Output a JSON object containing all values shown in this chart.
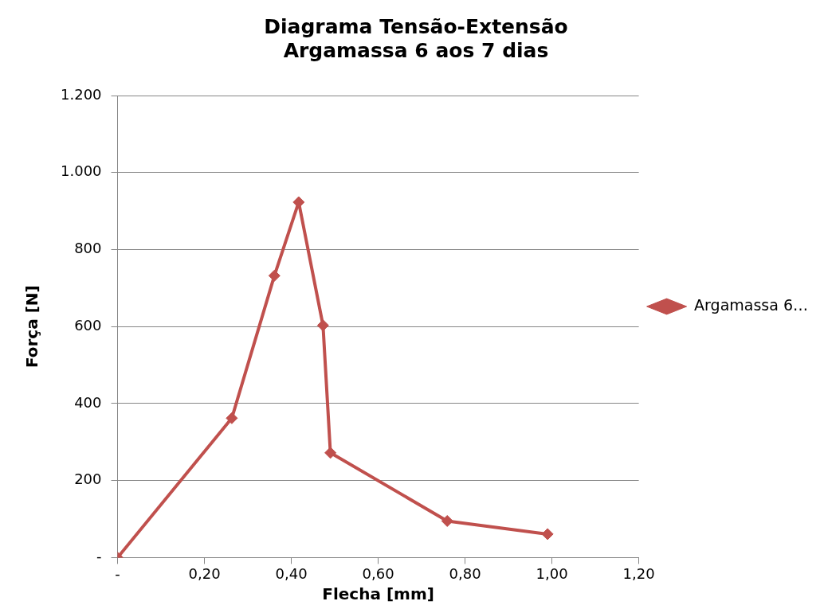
{
  "chart_data": {
    "type": "line",
    "title": [
      "Diagrama Tensão-Extensão",
      "Argamassa 6 aos 7 dias"
    ],
    "xlabel": "Flecha [mm]",
    "ylabel": "Força [N]",
    "series": [
      {
        "name": "Argamassa 6…",
        "color": "#c0504d",
        "x": [
          0.0,
          0.263,
          0.361,
          0.417,
          0.473,
          0.49,
          0.759,
          0.99
        ],
        "values": [
          0,
          362,
          732,
          923,
          603,
          272,
          95,
          61
        ]
      }
    ],
    "xlim": [
      0,
      1.2
    ],
    "xticks": [
      {
        "value": 0,
        "label": "-"
      },
      {
        "value": 0.2,
        "label": "0,20"
      },
      {
        "value": 0.4,
        "label": "0,40"
      },
      {
        "value": 0.6,
        "label": "0,60"
      },
      {
        "value": 0.8,
        "label": "0,80"
      },
      {
        "value": 1.0,
        "label": "1,00"
      },
      {
        "value": 1.2,
        "label": "1,20"
      }
    ],
    "ylim": [
      0,
      1200
    ],
    "yticks": [
      {
        "value": 0,
        "label": "-"
      },
      200,
      400,
      600,
      800,
      {
        "value": 1000,
        "label": "1.000"
      },
      {
        "value": 1200,
        "label": "1.200"
      }
    ],
    "grid": "y",
    "legend": "right",
    "marker": "diamond",
    "line_style": "solid"
  }
}
